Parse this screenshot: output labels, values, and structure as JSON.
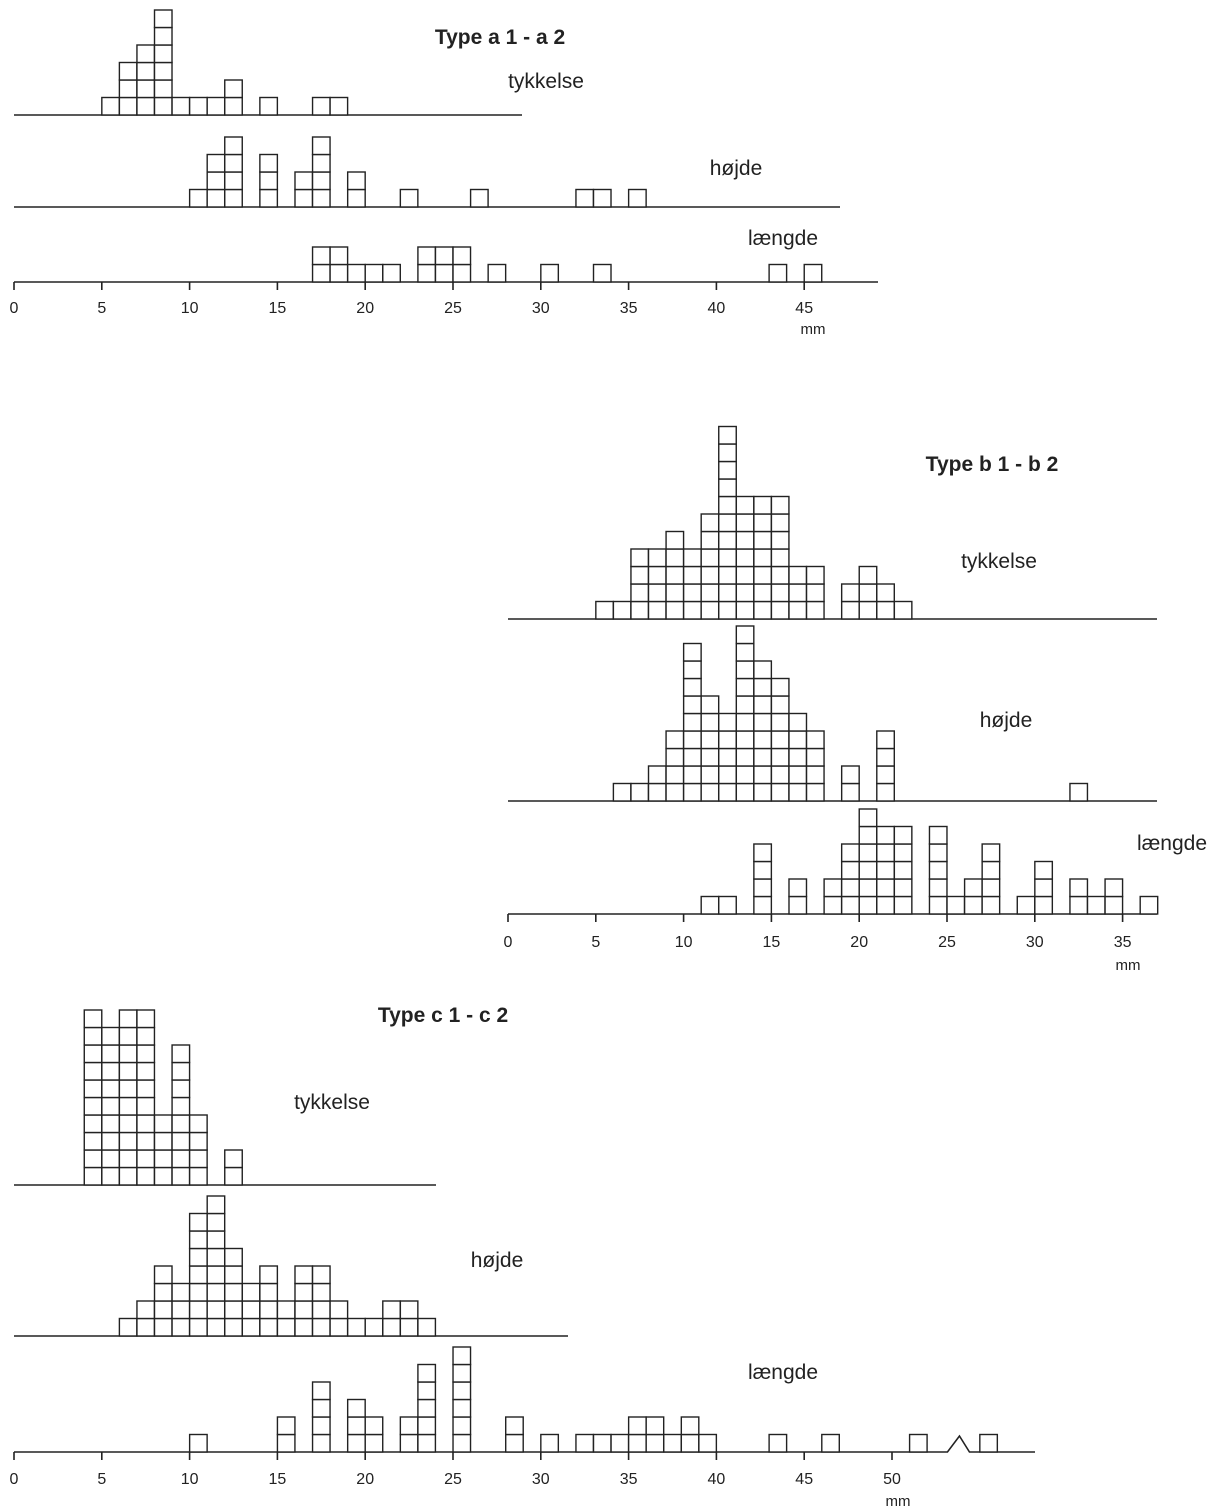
{
  "chart_data": [
    {
      "type": "histogram",
      "title": "Type a 1 - a 2",
      "unit": "mm",
      "x_ticks": [
        0,
        5,
        10,
        15,
        20,
        25,
        30,
        35,
        40,
        45
      ],
      "series": [
        {
          "name": "tykkelse",
          "bins": [
            [
              5.5,
              1
            ],
            [
              6.5,
              3
            ],
            [
              7.5,
              4
            ],
            [
              8.5,
              6
            ],
            [
              9.5,
              1
            ],
            [
              10.5,
              1
            ],
            [
              11.5,
              1
            ],
            [
              12.5,
              2
            ],
            [
              14.5,
              1
            ],
            [
              17.5,
              1
            ],
            [
              18.5,
              1
            ]
          ]
        },
        {
          "name": "højde",
          "bins": [
            [
              10.5,
              1
            ],
            [
              11.5,
              3
            ],
            [
              12.5,
              4
            ],
            [
              14.5,
              3
            ],
            [
              16.5,
              2
            ],
            [
              17.5,
              4
            ],
            [
              19.5,
              2
            ],
            [
              22.5,
              1
            ],
            [
              26.5,
              1
            ],
            [
              32.5,
              1
            ],
            [
              33.5,
              1
            ],
            [
              35.5,
              1
            ]
          ]
        },
        {
          "name": "længde",
          "bins": [
            [
              17.5,
              2
            ],
            [
              18.5,
              2
            ],
            [
              19.5,
              1
            ],
            [
              20.5,
              1
            ],
            [
              21.5,
              1
            ],
            [
              23.5,
              2
            ],
            [
              24.5,
              2
            ],
            [
              25.5,
              2
            ],
            [
              27.5,
              1
            ],
            [
              30.5,
              1
            ],
            [
              33.5,
              1
            ],
            [
              43.5,
              1
            ],
            [
              45.5,
              1
            ]
          ]
        }
      ]
    },
    {
      "type": "histogram",
      "title": "Type b 1 - b 2",
      "unit": "mm",
      "x_ticks": [
        0,
        5,
        10,
        15,
        20,
        25,
        30,
        35
      ],
      "series": [
        {
          "name": "tykkelse",
          "bins": [
            [
              5.5,
              1
            ],
            [
              6.5,
              1
            ],
            [
              7.5,
              4
            ],
            [
              8.5,
              4
            ],
            [
              9.5,
              5
            ],
            [
              10.5,
              4
            ],
            [
              11.5,
              6
            ],
            [
              12.5,
              11
            ],
            [
              13.5,
              7
            ],
            [
              14.5,
              7
            ],
            [
              15.5,
              7
            ],
            [
              16.5,
              3
            ],
            [
              17.5,
              3
            ],
            [
              19.5,
              2
            ],
            [
              20.5,
              3
            ],
            [
              21.5,
              2
            ],
            [
              22.5,
              1
            ]
          ]
        },
        {
          "name": "højde",
          "bins": [
            [
              6.5,
              1
            ],
            [
              7.5,
              1
            ],
            [
              8.5,
              2
            ],
            [
              9.5,
              4
            ],
            [
              10.5,
              9
            ],
            [
              11.5,
              6
            ],
            [
              12.5,
              5
            ],
            [
              13.5,
              10
            ],
            [
              14.5,
              8
            ],
            [
              15.5,
              7
            ],
            [
              16.5,
              5
            ],
            [
              17.5,
              4
            ],
            [
              19.5,
              2
            ],
            [
              21.5,
              4
            ],
            [
              32.5,
              1
            ]
          ]
        },
        {
          "name": "længde",
          "bins": [
            [
              11.5,
              1
            ],
            [
              12.5,
              1
            ],
            [
              14.5,
              4
            ],
            [
              16.5,
              2
            ],
            [
              18.5,
              2
            ],
            [
              19.5,
              4
            ],
            [
              20.5,
              6
            ],
            [
              21.5,
              5
            ],
            [
              22.5,
              5
            ],
            [
              24.5,
              5
            ],
            [
              25.5,
              1
            ],
            [
              26.5,
              2
            ],
            [
              27.5,
              4
            ],
            [
              29.5,
              1
            ],
            [
              30.5,
              3
            ],
            [
              32.5,
              2
            ],
            [
              33.5,
              1
            ],
            [
              34.5,
              2
            ],
            [
              36.5,
              1
            ]
          ]
        }
      ]
    },
    {
      "type": "histogram",
      "title": "Type c 1 - c 2",
      "unit": "mm",
      "x_ticks": [
        0,
        5,
        10,
        15,
        20,
        25,
        30,
        35,
        40,
        45,
        50
      ],
      "series": [
        {
          "name": "tykkelse",
          "bins": [
            [
              4.5,
              10
            ],
            [
              5.5,
              9
            ],
            [
              6.5,
              10
            ],
            [
              7.5,
              10
            ],
            [
              8.5,
              4
            ],
            [
              9.5,
              8
            ],
            [
              10.5,
              4
            ],
            [
              12.5,
              2
            ]
          ]
        },
        {
          "name": "højde",
          "bins": [
            [
              6.5,
              1
            ],
            [
              7.5,
              2
            ],
            [
              8.5,
              4
            ],
            [
              9.5,
              3
            ],
            [
              10.5,
              7
            ],
            [
              11.5,
              8
            ],
            [
              12.5,
              5
            ],
            [
              13.5,
              3
            ],
            [
              14.5,
              4
            ],
            [
              15.5,
              2
            ],
            [
              16.5,
              4
            ],
            [
              17.5,
              4
            ],
            [
              18.5,
              2
            ],
            [
              19.5,
              1
            ],
            [
              20.5,
              1
            ],
            [
              21.5,
              2
            ],
            [
              22.5,
              2
            ],
            [
              23.5,
              1
            ]
          ]
        },
        {
          "name": "længde",
          "bins": [
            [
              10.5,
              1
            ],
            [
              15.5,
              2
            ],
            [
              17.5,
              4
            ],
            [
              19.5,
              3
            ],
            [
              20.5,
              2
            ],
            [
              22.5,
              2
            ],
            [
              23.5,
              5
            ],
            [
              25.5,
              6
            ],
            [
              28.5,
              2
            ],
            [
              30.5,
              1
            ],
            [
              32.5,
              1
            ],
            [
              33.5,
              1
            ],
            [
              34.5,
              1
            ],
            [
              35.5,
              2
            ],
            [
              36.5,
              2
            ],
            [
              37.5,
              1
            ],
            [
              38.5,
              2
            ],
            [
              39.5,
              1
            ],
            [
              43.5,
              1
            ],
            [
              46.5,
              1
            ],
            [
              51.5,
              1
            ],
            [
              55.5,
              1
            ]
          ]
        }
      ]
    }
  ]
}
